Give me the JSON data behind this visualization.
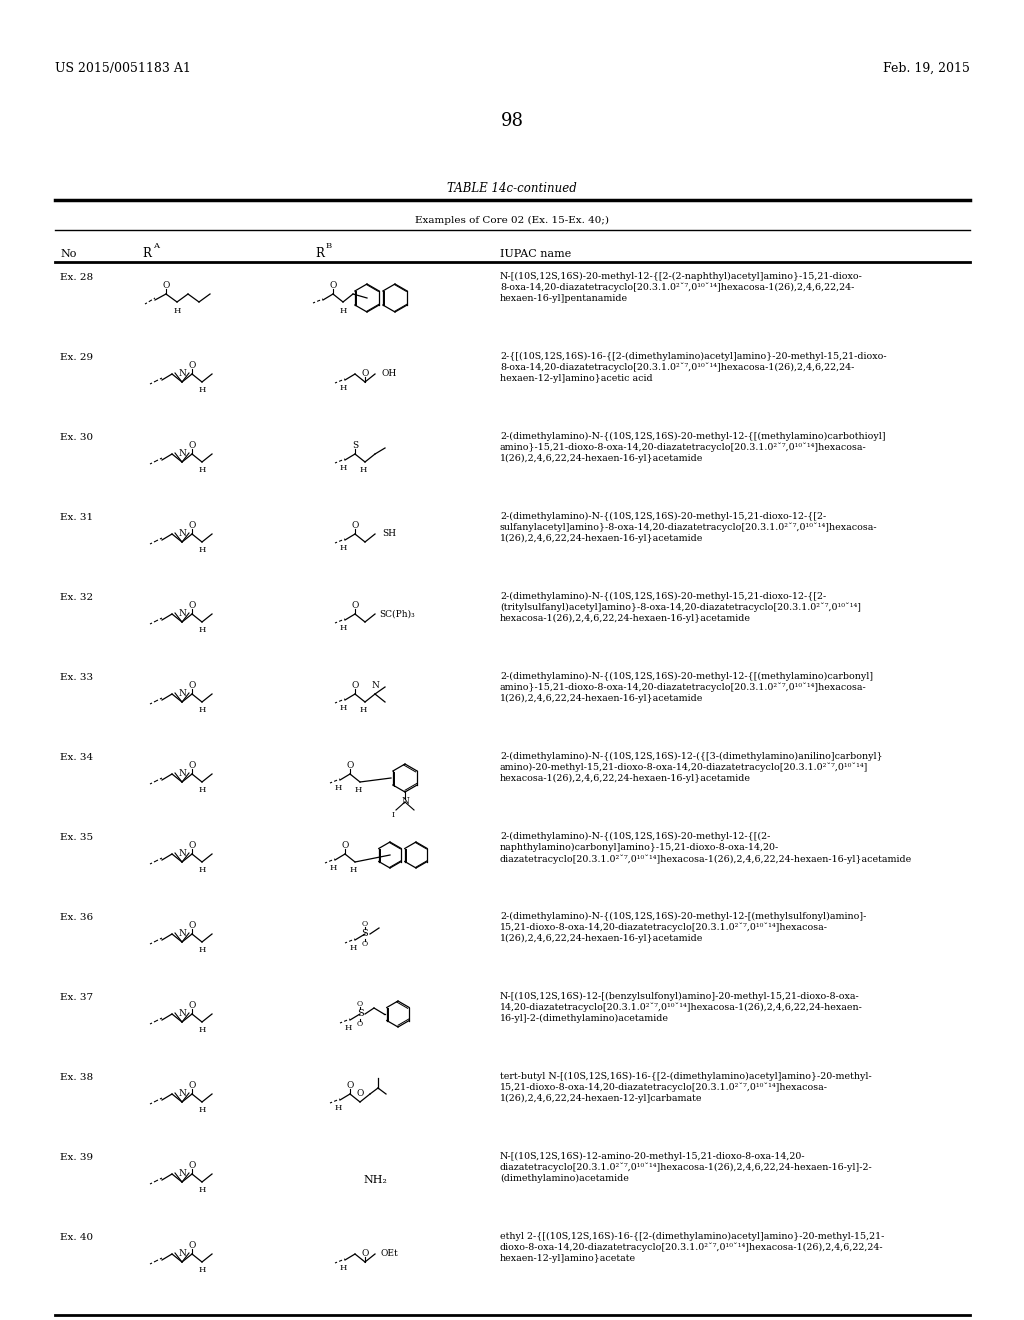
{
  "page_number": "98",
  "patent_number": "US 2015/0051183 A1",
  "patent_date": "Feb. 19, 2015",
  "table_title": "TABLE 14c-continued",
  "table_subtitle": "Examples of Core 02 (Ex. 15-Ex. 40;)",
  "background_color": "#ffffff",
  "rows": [
    {
      "no": "Ex. 28",
      "ra_type": "ex28",
      "rb_type": "naphthyl_acetamide",
      "iupac": [
        "N-[(10S,12S,16S)-20-methyl-12-{[2-(2-naphthyl)acetyl]amino}-15,21-dioxo-",
        "8-oxa-14,20-diazatetracyclo[20.3.1.0²ˇ⁷,0¹⁰ˇ¹⁴]hexacosa-1(26),2,4,6,22,24-",
        "hexaen-16-yl]pentanamide"
      ]
    },
    {
      "no": "Ex. 29",
      "ra_type": "standard",
      "rb_type": "oh_acid",
      "iupac": [
        "2-{[(10S,12S,16S)-16-{[2-(dimethylamino)acetyl]amino}-20-methyl-15,21-dioxo-",
        "8-oxa-14,20-diazatetracyclo[20.3.1.0²ˇ⁷,0¹⁰ˇ¹⁴]hexacosa-1(26),2,4,6,22,24-",
        "hexaen-12-yl]amino}acetic acid"
      ]
    },
    {
      "no": "Ex. 30",
      "ra_type": "standard",
      "rb_type": "thioamide",
      "iupac": [
        "2-(dimethylamino)-N-{(10S,12S,16S)-20-methyl-12-{[(methylamino)carbothioyl]",
        "amino}-15,21-dioxo-8-oxa-14,20-diazatetracyclo[20.3.1.0²ˇ⁷,0¹⁰ˇ¹⁴]hexacosa-",
        "1(26),2,4,6,22,24-hexaen-16-yl}acetamide"
      ]
    },
    {
      "no": "Ex. 31",
      "ra_type": "standard",
      "rb_type": "sh",
      "iupac": [
        "2-(dimethylamino)-N-{(10S,12S,16S)-20-methyl-15,21-dioxo-12-{[2-",
        "sulfanylacetyl]amino}-8-oxa-14,20-diazatetracyclo[20.3.1.0²ˇ⁷,0¹⁰ˇ¹⁴]hexacosa-",
        "1(26),2,4,6,22,24-hexaen-16-yl}acetamide"
      ]
    },
    {
      "no": "Ex. 32",
      "ra_type": "standard",
      "rb_type": "sc_ph3",
      "iupac": [
        "2-(dimethylamino)-N-{(10S,12S,16S)-20-methyl-15,21-dioxo-12-{[2-",
        "(tritylsulfanyl)acetyl]amino}-8-oxa-14,20-diazatetracyclo[20.3.1.0²ˇ⁷,0¹⁰ˇ¹⁴]",
        "hexacosa-1(26),2,4,6,22,24-hexaen-16-yl}acetamide"
      ]
    },
    {
      "no": "Ex. 33",
      "ra_type": "standard",
      "rb_type": "carbonyl_nhme",
      "iupac": [
        "2-(dimethylamino)-N-{(10S,12S,16S)-20-methyl-12-{[(methylamino)carbonyl]",
        "amino}-15,21-dioxo-8-oxa-14,20-diazatetracyclo[20.3.1.0²ˇ⁷,0¹⁰ˇ¹⁴]hexacosa-",
        "1(26),2,4,6,22,24-hexaen-16-yl}acetamide"
      ]
    },
    {
      "no": "Ex. 34",
      "ra_type": "standard",
      "rb_type": "anilino",
      "iupac": [
        "2-(dimethylamino)-N-{(10S,12S,16S)-12-({[3-(dimethylamino)anilino]carbonyl}",
        "amino)-20-methyl-15,21-dioxo-8-oxa-14,20-diazatetracyclo[20.3.1.0²ˇ⁷,0¹⁰ˇ¹⁴]",
        "hexacosa-1(26),2,4,6,22,24-hexaen-16-yl}acetamide"
      ]
    },
    {
      "no": "Ex. 35",
      "ra_type": "standard",
      "rb_type": "naphthyl_carbamoyl",
      "iupac": [
        "2-(dimethylamino)-N-{(10S,12S,16S)-20-methyl-12-{[(2-",
        "naphthylamino)carbonyl]amino}-15,21-dioxo-8-oxa-14,20-",
        "diazatetracyclo[20.3.1.0²ˇ⁷,0¹⁰ˇ¹⁴]hexacosa-1(26),2,4,6,22,24-hexaen-16-yl}acetamide"
      ]
    },
    {
      "no": "Ex. 36",
      "ra_type": "standard",
      "rb_type": "methylsulfonyl",
      "iupac": [
        "2-(dimethylamino)-N-{(10S,12S,16S)-20-methyl-12-[(methylsulfonyl)amino]-",
        "15,21-dioxo-8-oxa-14,20-diazatetracyclo[20.3.1.0²ˇ⁷,0¹⁰ˇ¹⁴]hexacosa-",
        "1(26),2,4,6,22,24-hexaen-16-yl}acetamide"
      ]
    },
    {
      "no": "Ex. 37",
      "ra_type": "standard",
      "rb_type": "benzyl_sulfonyl",
      "iupac": [
        "N-[(10S,12S,16S)-12-[(benzylsulfonyl)amino]-20-methyl-15,21-dioxo-8-oxa-",
        "14,20-diazatetracyclo[20.3.1.0²ˇ⁷,0¹⁰ˇ¹⁴]hexacosa-1(26),2,4,6,22,24-hexaen-",
        "16-yl]-2-(dimethylamino)acetamide"
      ]
    },
    {
      "no": "Ex. 38",
      "ra_type": "standard",
      "rb_type": "tbu_carbamate",
      "iupac": [
        "tert-butyl N-[(10S,12S,16S)-16-{[2-(dimethylamino)acetyl]amino}-20-methyl-",
        "15,21-dioxo-8-oxa-14,20-diazatetracyclo[20.3.1.0²ˇ⁷,0¹⁰ˇ¹⁴]hexacosa-",
        "1(26),2,4,6,22,24-hexaen-12-yl]carbamate"
      ]
    },
    {
      "no": "Ex. 39",
      "ra_type": "standard",
      "rb_type": "nh2",
      "iupac": [
        "N-[(10S,12S,16S)-12-amino-20-methyl-15,21-dioxo-8-oxa-14,20-",
        "diazatetracyclo[20.3.1.0²ˇ⁷,0¹⁰ˇ¹⁴]hexacosa-1(26),2,4,6,22,24-hexaen-16-yl]-2-",
        "(dimethylamino)acetamide"
      ]
    },
    {
      "no": "Ex. 40",
      "ra_type": "standard",
      "rb_type": "oet",
      "iupac": [
        "ethyl 2-{[(10S,12S,16S)-16-{[2-(dimethylamino)acetyl]amino}-20-methyl-15,21-",
        "dioxo-8-oxa-14,20-diazatetracyclo[20.3.1.0²ˇ⁷,0¹⁰ˇ¹⁴]hexacosa-1(26),2,4,6,22,24-",
        "hexaen-12-yl]amino}acetate"
      ]
    }
  ]
}
